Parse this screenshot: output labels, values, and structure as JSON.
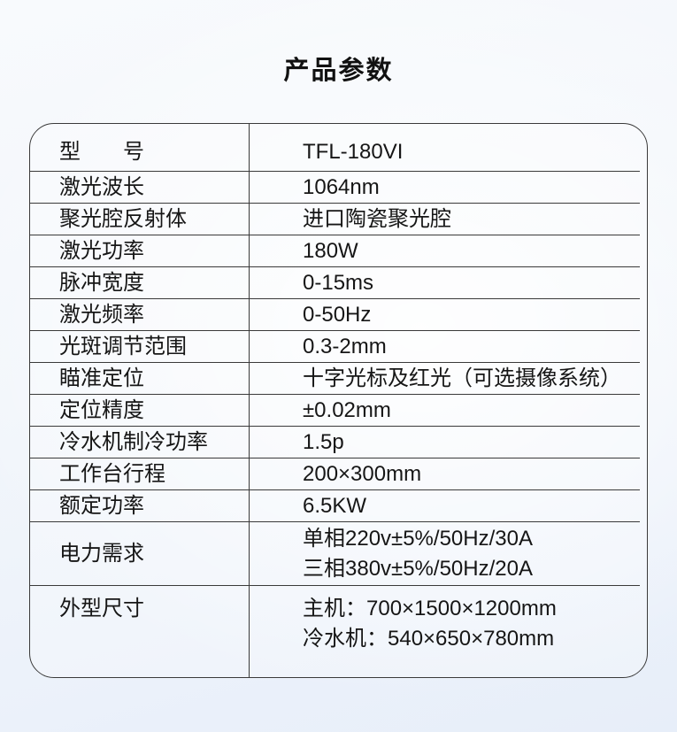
{
  "page": {
    "title": "产品参数"
  },
  "colors": {
    "border": "#3a3a3a",
    "text": "#161616",
    "background_top": "#f8fafd",
    "background_bottom": "#e7eef9"
  },
  "table": {
    "rows": [
      {
        "label": "型　　号",
        "value": "TFL-180VI"
      },
      {
        "label": "激光波长",
        "value": "1064nm"
      },
      {
        "label": "聚光腔反射体",
        "value": "进口陶瓷聚光腔"
      },
      {
        "label": "激光功率",
        "value": "180W"
      },
      {
        "label": "脉冲宽度",
        "value": "0-15ms"
      },
      {
        "label": "激光频率",
        "value": "0-50Hz"
      },
      {
        "label": "光斑调节范围",
        "value": "0.3-2mm"
      },
      {
        "label": "瞄准定位",
        "value": "十字光标及红光（可选摄像系统）"
      },
      {
        "label": "定位精度",
        "value": "±0.02mm"
      },
      {
        "label": "冷水机制冷功率",
        "value": "1.5p"
      },
      {
        "label": "工作台行程",
        "value": "200×300mm"
      },
      {
        "label": "额定功率",
        "value": "6.5KW"
      },
      {
        "label": "电力需求",
        "value": "单相220v±5%/50Hz/30A",
        "value2": "三相380v±5%/50Hz/20A"
      },
      {
        "label": "外型尺寸",
        "value": "主机：700×1500×1200mm",
        "value2": "冷水机：540×650×780mm"
      }
    ]
  }
}
